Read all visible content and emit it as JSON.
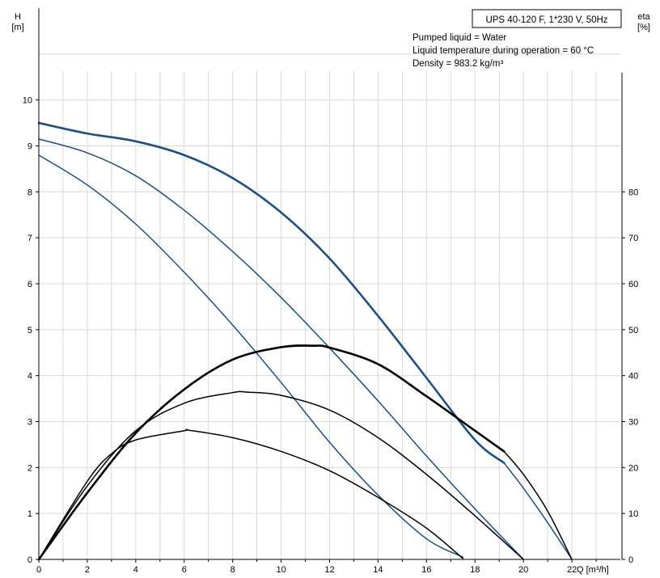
{
  "chart_data": {
    "type": "line",
    "title": "UPS 40-120 F, 1*230 V, 50Hz",
    "annotations": [
      "Pumped liquid = Water",
      "Liquid temperature during operation = 60 °C",
      "Density = 983.2 kg/m³"
    ],
    "xlabel": "Q [m³/h]",
    "ylabel_left": {
      "name": "H",
      "unit": "[m]"
    },
    "ylabel_right": {
      "name": "eta",
      "unit": "[%]"
    },
    "xlim": [
      0,
      24
    ],
    "ylim_left": [
      0,
      12
    ],
    "ylim_right": [
      0,
      120
    ],
    "x_ticks": [
      0,
      2,
      4,
      6,
      8,
      10,
      12,
      14,
      16,
      18,
      20,
      22
    ],
    "y_left_ticks": [
      0,
      1,
      2,
      3,
      4,
      5,
      6,
      7,
      8,
      9,
      10
    ],
    "y_right_ticks": [
      0,
      10,
      20,
      30,
      40,
      50,
      60,
      70,
      80
    ],
    "grid": true,
    "colors": {
      "head": "#1a4f8a",
      "power": "#000000",
      "grid": "#d9d9d9",
      "frame": "#000000"
    },
    "series": [
      {
        "axis": "left",
        "thick": true,
        "color": "#1a4f8a",
        "x": [
          0,
          2,
          4,
          6,
          8,
          10,
          12,
          14,
          16,
          18,
          19.2
        ],
        "y": [
          9.5,
          9.27,
          9.1,
          8.8,
          8.3,
          7.55,
          6.55,
          5.3,
          3.95,
          2.6,
          2.1
        ]
      },
      {
        "axis": "left",
        "thick": false,
        "color": "#1a4f8a",
        "x": [
          19.2,
          20,
          21,
          22
        ],
        "y": [
          2.1,
          1.55,
          0.8,
          0
        ]
      },
      {
        "axis": "left",
        "thick": false,
        "color": "#1a4f8a",
        "x": [
          0,
          2,
          4,
          6,
          8,
          10,
          12,
          14,
          16,
          18,
          20
        ],
        "y": [
          9.15,
          8.85,
          8.35,
          7.6,
          6.7,
          5.7,
          4.6,
          3.45,
          2.25,
          1.1,
          0
        ]
      },
      {
        "axis": "left",
        "thick": false,
        "color": "#1a4f8a",
        "x": [
          0,
          2,
          4,
          6,
          8,
          10,
          12,
          14,
          16,
          17.5
        ],
        "y": [
          8.8,
          8.15,
          7.3,
          6.25,
          5.1,
          3.85,
          2.55,
          1.4,
          0.45,
          0.05
        ]
      },
      {
        "axis": "right",
        "thick": true,
        "color": "#000000",
        "x": [
          0,
          2,
          4,
          6,
          8,
          10,
          11.3,
          12,
          14,
          16,
          18,
          19.2
        ],
        "y": [
          0,
          14.5,
          27.5,
          37,
          43.5,
          46.2,
          46.5,
          46.1,
          42.5,
          35.5,
          28,
          23.5
        ]
      },
      {
        "axis": "right",
        "thick": false,
        "color": "#000000",
        "x": [
          19.2,
          20,
          21,
          22
        ],
        "y": [
          23.5,
          18.5,
          10.5,
          0
        ]
      },
      {
        "axis": "right",
        "thick": false,
        "color": "#000000",
        "x": [
          0,
          2,
          4,
          6,
          8,
          8.6,
          10,
          12,
          14,
          16,
          18,
          20
        ],
        "y": [
          0,
          16,
          28,
          34,
          36.3,
          36.4,
          35.7,
          32.5,
          26.5,
          18.5,
          9.5,
          0
        ]
      },
      {
        "axis": "right",
        "thick": false,
        "color": "#000000",
        "x": [
          0,
          2,
          3,
          4,
          6,
          6.2,
          8,
          10,
          12,
          14,
          16,
          17.5
        ],
        "y": [
          0,
          17,
          23,
          26,
          28,
          28.1,
          26.5,
          23.5,
          19.3,
          13.5,
          6.8,
          0.2
        ]
      }
    ]
  }
}
